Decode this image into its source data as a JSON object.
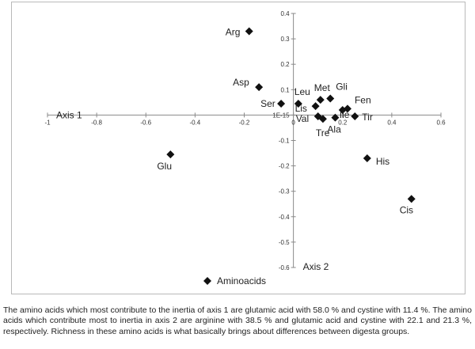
{
  "chart_data": {
    "type": "scatter",
    "xlim": [
      -1,
      0.6
    ],
    "ylim": [
      -0.6,
      0.4
    ],
    "x_ticks": [
      -1,
      -0.8,
      -0.6,
      -0.4,
      -0.2,
      0,
      0.2,
      0.4,
      0.6
    ],
    "y_ticks": [
      -0.6,
      -0.5,
      -0.4,
      -0.3,
      -0.2,
      -0.1,
      0,
      0.1,
      0.2,
      0.3,
      0.4
    ],
    "x_tick_labels": [
      "-1",
      "-0.8",
      "-0.6",
      "-0.4",
      "-0.2",
      "0",
      "0.2",
      "0.4",
      "0.6"
    ],
    "y_tick_labels": [
      "-0.6",
      "-0.5",
      "-0.4",
      "-0.3",
      "-0.2",
      "-0.1",
      "1E-15",
      "0.1",
      "0.2",
      "0.3",
      "0.4"
    ],
    "xlabel": "Axis 1",
    "ylabel": "Axis 2",
    "grid": false,
    "marker": "diamond",
    "color": "#111111",
    "legend": {
      "placement": "bottom-left",
      "label": "Aminoacids"
    },
    "series": [
      {
        "name": "Aminoacids",
        "points": [
          {
            "label": "Arg",
            "x": -0.18,
            "y": 0.33
          },
          {
            "label": "Asp",
            "x": -0.14,
            "y": 0.11
          },
          {
            "label": "Ser",
            "x": -0.05,
            "y": 0.045
          },
          {
            "label": "Leu",
            "x": 0.02,
            "y": 0.045
          },
          {
            "label": "Met",
            "x": 0.11,
            "y": 0.06
          },
          {
            "label": "Gli",
            "x": 0.15,
            "y": 0.065
          },
          {
            "label": "Lis",
            "x": 0.09,
            "y": 0.035
          },
          {
            "label": "Ile",
            "x": 0.2,
            "y": 0.02
          },
          {
            "label": "Fen",
            "x": 0.22,
            "y": 0.025
          },
          {
            "label": "Val",
            "x": 0.1,
            "y": -0.005
          },
          {
            "label": "Tre",
            "x": 0.12,
            "y": -0.015
          },
          {
            "label": "Ala",
            "x": 0.17,
            "y": -0.01
          },
          {
            "label": "Tir",
            "x": 0.25,
            "y": -0.005
          },
          {
            "label": "Glu",
            "x": -0.5,
            "y": -0.155
          },
          {
            "label": "His",
            "x": 0.3,
            "y": -0.17
          },
          {
            "label": "Cis",
            "x": 0.48,
            "y": -0.33
          }
        ]
      }
    ]
  },
  "caption": "The amino acids which most contribute to the inertia of axis 1 are glutamic acid with 58.0 % and cystine with 11.4 %. The amino acids which contribute most to inertia in axis 2 are arginine with 38.5 % and glutamic acid and cystine with 22.1 and 21.3 %, respectively. Richness in these amino acids is what basically brings about differences between digesta groups."
}
